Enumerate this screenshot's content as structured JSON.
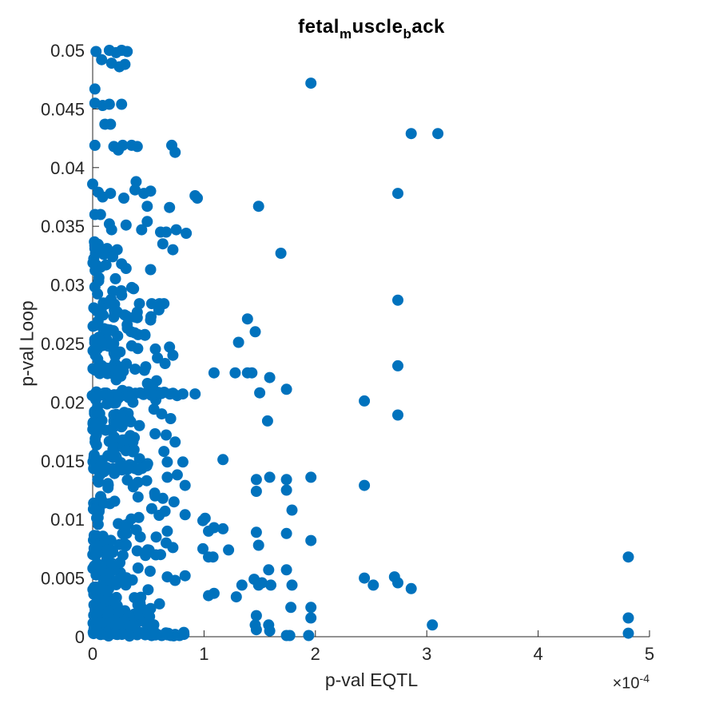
{
  "figure": {
    "background": "#ffffff"
  },
  "chart_data": {
    "type": "scatter",
    "title": "fetal_muscle_back",
    "title_parts": [
      {
        "text": "fetal",
        "sub": false
      },
      {
        "text": "m",
        "sub": true
      },
      {
        "text": "uscle",
        "sub": false
      },
      {
        "text": "b",
        "sub": true
      },
      {
        "text": "ack",
        "sub": false
      }
    ],
    "xlabel": "p-val EQTL",
    "ylabel": "p-val Loop",
    "x_exponent": {
      "base": "×10",
      "power": "-4"
    },
    "x_unit": 0.0001,
    "xlim": [
      0,
      5
    ],
    "ylim": [
      0,
      0.05
    ],
    "grid": false,
    "legend": null,
    "axis_color": "#262626",
    "title_color": "#000000",
    "marker": {
      "color": "#0072BD",
      "radius": 7
    },
    "xticks": [
      {
        "v": 0,
        "label": "0"
      },
      {
        "v": 1,
        "label": "1"
      },
      {
        "v": 2,
        "label": "2"
      },
      {
        "v": 3,
        "label": "3"
      },
      {
        "v": 4,
        "label": "4"
      },
      {
        "v": 5,
        "label": "5"
      }
    ],
    "yticks": [
      {
        "v": 0,
        "label": "0"
      },
      {
        "v": 0.005,
        "label": "0.005"
      },
      {
        "v": 0.01,
        "label": "0.01"
      },
      {
        "v": 0.015,
        "label": "0.015"
      },
      {
        "v": 0.02,
        "label": "0.02"
      },
      {
        "v": 0.025,
        "label": "0.025"
      },
      {
        "v": 0.03,
        "label": "0.03"
      },
      {
        "v": 0.035,
        "label": "0.035"
      },
      {
        "v": 0.04,
        "label": "0.04"
      },
      {
        "v": 0.045,
        "label": "0.045"
      },
      {
        "v": 0.05,
        "label": "0.05"
      }
    ],
    "points": [
      [
        0.03,
        0.0499
      ],
      [
        0.15,
        0.05
      ],
      [
        0.21,
        0.0498
      ],
      [
        0.26,
        0.05
      ],
      [
        0.31,
        0.0499
      ],
      [
        0.08,
        0.0492
      ],
      [
        0.17,
        0.0489
      ],
      [
        0.24,
        0.0486
      ],
      [
        0.29,
        0.0488
      ],
      [
        0.02,
        0.0467
      ],
      [
        0.02,
        0.0455
      ],
      [
        0.09,
        0.0453
      ],
      [
        0.15,
        0.0454
      ],
      [
        0.26,
        0.0454
      ],
      [
        0.11,
        0.0437
      ],
      [
        0.16,
        0.0437
      ],
      [
        2.86,
        0.0429
      ],
      [
        3.1,
        0.0429
      ],
      [
        1.96,
        0.0472
      ],
      [
        0.02,
        0.0419
      ],
      [
        0.19,
        0.0418
      ],
      [
        0.23,
        0.0415
      ],
      [
        0.27,
        0.0419
      ],
      [
        0.35,
        0.0419
      ],
      [
        0.4,
        0.0418
      ],
      [
        0.71,
        0.0419
      ],
      [
        0.74,
        0.0413
      ],
      [
        0.39,
        0.0388
      ],
      [
        0,
        0.0386
      ],
      [
        0.05,
        0.0379
      ],
      [
        0.09,
        0.0375
      ],
      [
        0.16,
        0.0378
      ],
      [
        0.28,
        0.0374
      ],
      [
        0.38,
        0.0381
      ],
      [
        0.46,
        0.0378
      ],
      [
        0.52,
        0.038
      ],
      [
        0.92,
        0.0376
      ],
      [
        0.94,
        0.0374
      ],
      [
        2.74,
        0.0378
      ],
      [
        0.02,
        0.036
      ],
      [
        0.07,
        0.036
      ],
      [
        0.49,
        0.0367
      ],
      [
        0.69,
        0.0366
      ],
      [
        1.49,
        0.0367
      ],
      [
        0.15,
        0.0352
      ],
      [
        0.3,
        0.0351
      ],
      [
        0.49,
        0.0354
      ],
      [
        0.17,
        0.0347
      ],
      [
        0.44,
        0.0347
      ],
      [
        0.75,
        0.0347
      ],
      [
        0.61,
        0.0345
      ],
      [
        0.66,
        0.0345
      ],
      [
        0.84,
        0.0344
      ],
      [
        0.63,
        0.0335
      ],
      [
        0.72,
        0.033
      ],
      [
        1.69,
        0.0327
      ],
      [
        0.02,
        0.0331
      ],
      [
        0.13,
        0.0331
      ],
      [
        0.22,
        0.033
      ],
      [
        0.06,
        0.0328
      ],
      [
        0.1,
        0.0326
      ],
      [
        0.18,
        0.0324
      ],
      [
        0.26,
        0.0318
      ],
      [
        0.12,
        0.0317
      ],
      [
        0.07,
        0.0315
      ],
      [
        0.3,
        0.0314
      ],
      [
        0.52,
        0.0313
      ],
      [
        2.74,
        0.0287
      ],
      [
        0.42,
        0.0284
      ],
      [
        0.53,
        0.0284
      ],
      [
        0.6,
        0.0284
      ],
      [
        0.64,
        0.0284
      ],
      [
        0.22,
        0.0277
      ],
      [
        1.39,
        0.0271
      ],
      [
        0.4,
        0.0272
      ],
      [
        0.52,
        0.027
      ],
      [
        0.31,
        0.0266
      ],
      [
        1.46,
        0.026
      ],
      [
        0.47,
        0.0257
      ],
      [
        1.31,
        0.0251
      ],
      [
        0.35,
        0.0248
      ],
      [
        0.69,
        0.0247
      ],
      [
        0.72,
        0.024
      ],
      [
        0.65,
        0.0233
      ],
      [
        2.74,
        0.0231
      ],
      [
        1.09,
        0.0225
      ],
      [
        1.28,
        0.0225
      ],
      [
        1.39,
        0.0225
      ],
      [
        1.43,
        0.0225
      ],
      [
        1.59,
        0.0221
      ],
      [
        0.81,
        0.0207
      ],
      [
        0.92,
        0.0207
      ],
      [
        1.5,
        0.0208
      ],
      [
        1.74,
        0.0211
      ],
      [
        2.44,
        0.0201
      ],
      [
        0.55,
        0.0194
      ],
      [
        0.62,
        0.019
      ],
      [
        2.74,
        0.0189
      ],
      [
        0.7,
        0.0186
      ],
      [
        1.57,
        0.0184
      ],
      [
        0.42,
        0.018
      ],
      [
        0.56,
        0.0173
      ],
      [
        0.66,
        0.0172
      ],
      [
        0.74,
        0.0166
      ],
      [
        0.64,
        0.0158
      ],
      [
        1.17,
        0.0151
      ],
      [
        0.67,
        0.0149
      ],
      [
        0.81,
        0.0149
      ],
      [
        0.67,
        0.0136
      ],
      [
        0.76,
        0.0138
      ],
      [
        1.47,
        0.0134
      ],
      [
        1.59,
        0.0136
      ],
      [
        1.74,
        0.0134
      ],
      [
        1.96,
        0.0136
      ],
      [
        2.44,
        0.0129
      ],
      [
        0.83,
        0.0129
      ],
      [
        1.47,
        0.0124
      ],
      [
        1.74,
        0.0125
      ],
      [
        0.56,
        0.012
      ],
      [
        0.63,
        0.0118
      ],
      [
        0.73,
        0.0115
      ],
      [
        0.65,
        0.0107
      ],
      [
        1.79,
        0.0108
      ],
      [
        0.83,
        0.0104
      ],
      [
        1.01,
        0.0101
      ],
      [
        0.99,
        0.0099
      ],
      [
        1.09,
        0.0093
      ],
      [
        1.17,
        0.0092
      ],
      [
        1.04,
        0.009
      ],
      [
        0.67,
        0.009
      ],
      [
        1.47,
        0.0089
      ],
      [
        1.74,
        0.0088
      ],
      [
        0.57,
        0.0085
      ],
      [
        1.96,
        0.0082
      ],
      [
        0.66,
        0.008
      ],
      [
        1.49,
        0.0078
      ],
      [
        0.72,
        0.0076
      ],
      [
        0.99,
        0.0075
      ],
      [
        1.22,
        0.0074
      ],
      [
        0.61,
        0.007
      ],
      [
        1.08,
        0.0068
      ],
      [
        1.04,
        0.0068
      ],
      [
        4.81,
        0.0068
      ],
      [
        1.58,
        0.0057
      ],
      [
        1.74,
        0.0057
      ],
      [
        0.67,
        0.0051
      ],
      [
        0.83,
        0.0052
      ],
      [
        0.74,
        0.0048
      ],
      [
        2.44,
        0.005
      ],
      [
        2.71,
        0.0051
      ],
      [
        2.52,
        0.0044
      ],
      [
        2.74,
        0.0046
      ],
      [
        2.86,
        0.0041
      ],
      [
        1.45,
        0.0049
      ],
      [
        1.34,
        0.0044
      ],
      [
        1.49,
        0.0044
      ],
      [
        1.52,
        0.0046
      ],
      [
        1.6,
        0.0044
      ],
      [
        1.79,
        0.0044
      ],
      [
        1.09,
        0.0037
      ],
      [
        1.29,
        0.0034
      ],
      [
        1.04,
        0.0035
      ],
      [
        0.6,
        0.0028
      ],
      [
        0.52,
        0.0024
      ],
      [
        1.78,
        0.0025
      ],
      [
        1.96,
        0.0025
      ],
      [
        1.47,
        0.0018
      ],
      [
        1.96,
        0.0016
      ],
      [
        4.81,
        0.0016
      ],
      [
        1.46,
        0.001
      ],
      [
        1.58,
        0.001
      ],
      [
        3.05,
        0.001
      ],
      [
        1.47,
        0.0006
      ],
      [
        1.59,
        0.0005
      ],
      [
        1.74,
        0.0001
      ],
      [
        1.77,
        0.0001
      ],
      [
        1.94,
        0.0001
      ],
      [
        4.81,
        0.0003
      ],
      [
        0.58,
        0.0002
      ],
      [
        0.62,
        0.0001
      ],
      [
        0.66,
        0.0003
      ],
      [
        0.7,
        0.0001
      ],
      [
        0.74,
        0.0002
      ],
      [
        0.78,
        0.0001
      ],
      [
        0.82,
        0.0002
      ]
    ],
    "dense_regions": [
      {
        "x0": 0.0,
        "x1": 0.06,
        "y0": 0.0005,
        "y1": 0.034,
        "n": 75,
        "mode": "cloud"
      },
      {
        "x0": 0.06,
        "x1": 0.22,
        "y0": 0.0005,
        "y1": 0.031,
        "n": 105,
        "mode": "cloud"
      },
      {
        "x0": 0.22,
        "x1": 0.38,
        "y0": 0.001,
        "y1": 0.03,
        "n": 65,
        "mode": "cloud"
      },
      {
        "x0": 0.38,
        "x1": 0.6,
        "y0": 0.001,
        "y1": 0.028,
        "n": 42,
        "mode": "cloud"
      },
      {
        "x0": 0.0,
        "x1": 0.3,
        "y0": 0.002,
        "y1": 0.008,
        "n": 40,
        "mode": "cloud"
      },
      {
        "x0": 0.0,
        "x1": 0.55,
        "y0": 0.0001,
        "y1": 0.0022,
        "n": 70,
        "mode": "cloud"
      },
      {
        "x0": 0.0,
        "x1": 0.82,
        "y0": 5e-05,
        "y1": 0.0004,
        "n": 22,
        "mode": "cloud"
      },
      {
        "x0": 0.0,
        "x1": 0.75,
        "y0": 0.0205,
        "y1": 0.0209,
        "n": 24,
        "mode": "stripe"
      },
      {
        "x0": 0.0,
        "x1": 0.48,
        "y0": 0.0142,
        "y1": 0.0146,
        "n": 16,
        "mode": "stripe"
      },
      {
        "x0": 0.0,
        "x1": 0.25,
        "y0": 0.0227,
        "y1": 0.023,
        "n": 9,
        "mode": "stripe"
      }
    ],
    "seed": 20
  }
}
